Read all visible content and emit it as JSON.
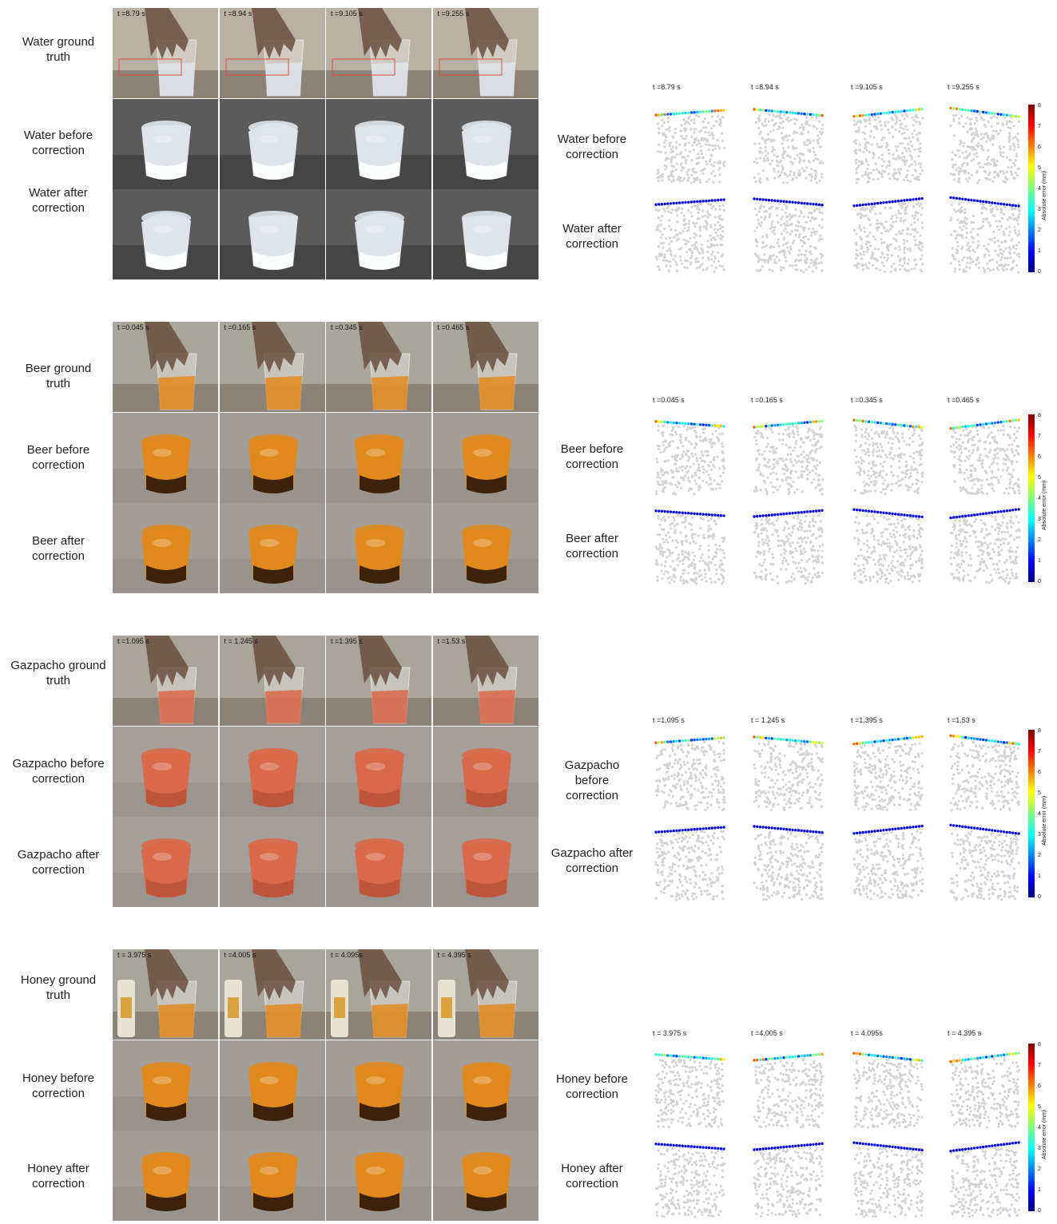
{
  "colorbar": {
    "title": "Absolute error (mm)",
    "ticks": [
      "0",
      "1",
      "2",
      "3",
      "4",
      "5",
      "6",
      "7",
      "8"
    ]
  },
  "blocks": [
    {
      "id": "water",
      "labels": {
        "gt": [
          "Water ground",
          "truth"
        ],
        "before": [
          "Water before",
          "correction"
        ],
        "after": [
          "Water after",
          "correction"
        ]
      },
      "err_labels": {
        "before": [
          "Water before",
          "correction"
        ],
        "after": [
          "Water after",
          "correction"
        ]
      },
      "times": [
        "t =8.79 s",
        "t =8.94 s",
        "t =9.105 s",
        "t =9.255 s"
      ],
      "panel_times": [
        "t =8.79 s",
        "t =8.94 s",
        "t =9.105 s",
        "t =9.255 s"
      ],
      "colors": {
        "liquid": "#dfe4ea",
        "liquid_dark": "#ffffff",
        "gt_bg": "#b9b1a4",
        "render_bg": "#5b5b5b",
        "surface": "#2f2f2f"
      }
    },
    {
      "id": "beer",
      "labels": {
        "gt": [
          "Beer ground",
          "truth"
        ],
        "before": [
          "Beer before",
          "correction"
        ],
        "after": [
          "Beer after",
          "correction"
        ]
      },
      "err_labels": {
        "before": [
          "Beer before",
          "correction"
        ],
        "after": [
          "Beer after",
          "correction"
        ]
      },
      "times": [
        "t =0.045 s",
        "t =0.165 s",
        "t =0.345 s",
        "t =0.465 s"
      ],
      "panel_times": [
        "t =0.045 s",
        "t =0.165 s",
        "t =0.345 s",
        "t =0.465 s"
      ],
      "colors": {
        "liquid": "#e08a1e",
        "liquid_dark": "#2a1608",
        "gt_bg": "#a9a79c",
        "render_bg": "#a39d97",
        "surface": "#8f8a86"
      }
    },
    {
      "id": "gazpacho",
      "labels": {
        "gt": [
          "Gazpacho ground",
          "truth"
        ],
        "before": [
          "Gazpacho before",
          "correction"
        ],
        "after": [
          "Gazpacho after",
          "correction"
        ]
      },
      "err_labels": {
        "before": [
          "Gazpacho before",
          "correction"
        ],
        "after": [
          "Gazpacho after",
          "correction"
        ]
      },
      "times": [
        "t =1.095 s",
        "t = 1.245 s",
        "t =1.395 s",
        "t =1.53 s"
      ],
      "panel_times": [
        "t =1.095 s",
        "t = 1.245 s",
        "t =1.395 s",
        "t =1.53 s"
      ],
      "colors": {
        "liquid": "#d9694a",
        "liquid_dark": "#b9533a",
        "gt_bg": "#a9a59a",
        "render_bg": "#a49f9a",
        "surface": "#908b87"
      }
    },
    {
      "id": "honey",
      "labels": {
        "gt": [
          "Honey ground",
          "truth"
        ],
        "before": [
          "Honey before",
          "correction"
        ],
        "after": [
          "Honey after",
          "correction"
        ]
      },
      "err_labels": {
        "before": [
          "Honey before",
          "correction"
        ],
        "after": [
          "Honey after",
          "correction"
        ]
      },
      "times": [
        "t = 3.975 s",
        "t =4.005 s",
        "t = 4.095s",
        "t = 4.395 s"
      ],
      "panel_times": [
        "t = 3.975 s",
        "t =4.005 s",
        "t = 4.095s",
        "t = 4.395 s"
      ],
      "colors": {
        "liquid": "#e08a1e",
        "liquid_dark": "#2a1608",
        "gt_bg": "#a8a59d",
        "render_bg": "#a39d97",
        "surface": "#8f8a86"
      }
    }
  ]
}
